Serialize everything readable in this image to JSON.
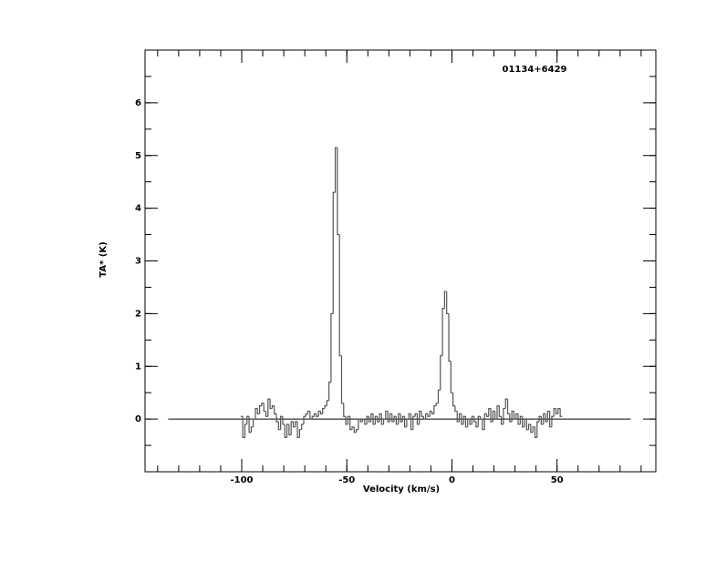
{
  "chart_data": {
    "type": "step",
    "title": "01134+6429",
    "xlabel": "Velocity (km/s)",
    "ylabel": "TA* (K)",
    "xlim": [
      -146,
      97
    ],
    "ylim": [
      -1,
      7
    ],
    "xticks": [
      -100,
      -50,
      0,
      50
    ],
    "yticks": [
      0,
      1,
      2,
      3,
      4,
      5,
      6
    ],
    "xminorticks": [
      -140,
      -130,
      -120,
      -110,
      -100,
      -90,
      -80,
      -70,
      -60,
      -50,
      -40,
      -30,
      -20,
      -10,
      0,
      10,
      20,
      30,
      40,
      50,
      60,
      70,
      80,
      90
    ],
    "yminorticks": [
      -0.5,
      0,
      0.5,
      1,
      1.5,
      2,
      2.5,
      3,
      3.5,
      4,
      4.5,
      5,
      5.5,
      6,
      6.5
    ],
    "baseline": {
      "x": [
        -135,
        85
      ],
      "y": 0
    },
    "color": "#555555",
    "x": [
      -100,
      -99,
      -98,
      -97,
      -96,
      -95,
      -94,
      -93,
      -92,
      -91,
      -90,
      -89,
      -88,
      -87,
      -86,
      -85,
      -84,
      -83,
      -82,
      -81,
      -80,
      -79,
      -78,
      -77,
      -76,
      -75,
      -74,
      -73,
      -72,
      -71,
      -70,
      -69,
      -68,
      -67,
      -66,
      -65,
      -64,
      -63,
      -62,
      -61,
      -60,
      -59,
      -58,
      -57,
      -56,
      -55,
      -54,
      -53,
      -52,
      -51,
      -50,
      -49,
      -48,
      -47,
      -46,
      -45,
      -44,
      -43,
      -42,
      -41,
      -40,
      -39,
      -38,
      -37,
      -36,
      -35,
      -34,
      -33,
      -32,
      -31,
      -30,
      -29,
      -28,
      -27,
      -26,
      -25,
      -24,
      -23,
      -22,
      -21,
      -20,
      -19,
      -18,
      -17,
      -16,
      -15,
      -14,
      -13,
      -12,
      -11,
      -10,
      -9,
      -8,
      -7,
      -6,
      -5,
      -4,
      -3,
      -2,
      -1,
      0,
      1,
      2,
      3,
      4,
      5,
      6,
      7,
      8,
      9,
      10,
      11,
      12,
      13,
      14,
      15,
      16,
      17,
      18,
      19,
      20,
      21,
      22,
      23,
      24,
      25,
      26,
      27,
      28,
      29,
      30,
      31,
      32,
      33,
      34,
      35,
      36,
      37,
      38,
      39,
      40,
      41,
      42,
      43,
      44,
      45,
      46,
      47,
      48,
      49,
      50,
      51,
      52
    ],
    "values": [
      0.05,
      -0.35,
      -0.1,
      0.05,
      -0.25,
      -0.15,
      0.0,
      0.2,
      0.1,
      0.25,
      0.3,
      0.15,
      0.05,
      0.38,
      0.2,
      0.25,
      0.1,
      -0.05,
      -0.2,
      0.05,
      -0.1,
      -0.35,
      -0.1,
      -0.3,
      -0.05,
      -0.15,
      -0.05,
      -0.35,
      -0.2,
      -0.1,
      0.05,
      0.1,
      0.15,
      0.0,
      0.05,
      0.1,
      0.05,
      0.15,
      0.1,
      0.2,
      0.25,
      0.35,
      0.7,
      2.0,
      4.3,
      5.15,
      3.5,
      1.2,
      0.3,
      0.05,
      -0.1,
      0.05,
      -0.2,
      -0.15,
      -0.25,
      -0.2,
      0.0,
      -0.05,
      0.0,
      -0.1,
      0.05,
      -0.05,
      0.1,
      -0.1,
      0.05,
      -0.05,
      0.1,
      -0.1,
      0.0,
      0.15,
      -0.05,
      0.1,
      -0.05,
      0.05,
      -0.1,
      0.1,
      -0.05,
      0.05,
      -0.15,
      0.0,
      0.1,
      -0.2,
      0.05,
      0.1,
      -0.1,
      0.15,
      0.05,
      0.0,
      0.1,
      0.05,
      0.15,
      0.1,
      0.25,
      0.3,
      0.55,
      1.2,
      2.1,
      2.42,
      2.0,
      1.1,
      0.5,
      0.25,
      0.15,
      -0.05,
      0.1,
      -0.1,
      0.05,
      -0.15,
      0.0,
      -0.1,
      0.05,
      -0.05,
      -0.15,
      0.05,
      0.0,
      -0.2,
      0.1,
      0.05,
      0.2,
      -0.05,
      0.15,
      0.0,
      0.25,
      0.05,
      -0.1,
      0.2,
      0.38,
      0.1,
      -0.05,
      0.15,
      0.0,
      0.1,
      -0.1,
      0.05,
      -0.15,
      0.0,
      -0.2,
      -0.1,
      -0.25,
      -0.15,
      -0.35,
      -0.05,
      0.05,
      -0.1,
      0.1,
      -0.05,
      0.15,
      -0.15,
      0.05,
      0.2,
      0.1,
      0.2,
      0.05
    ]
  }
}
